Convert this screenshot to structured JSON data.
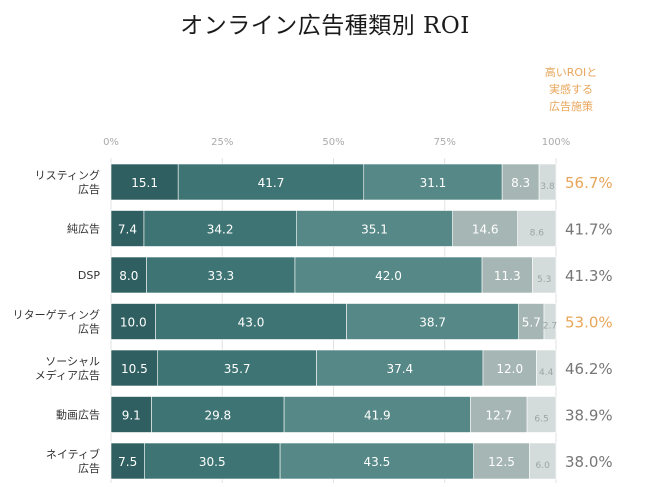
{
  "title": "オンライン広告種類別 ROI",
  "highlight_note": [
    "高いROIと",
    "実感する",
    "広告施策"
  ],
  "colors": {
    "segments": [
      "#2f5f60",
      "#3e7574",
      "#558886",
      "#a6b6b4",
      "#d3dcdb"
    ],
    "segment_text": [
      "#ffffff",
      "#ffffff",
      "#ffffff",
      "#ffffff",
      "#9aa5a4"
    ],
    "roi_normal": "#777777",
    "roi_highlight": "#e8a65a",
    "tick_label": "#aaaaaa",
    "category_label": "#333333"
  },
  "chart_data": {
    "type": "bar",
    "orientation": "horizontal",
    "stacked": true,
    "normalized": "percent",
    "xlim": [
      0,
      100
    ],
    "xticks": [
      "0%",
      "25%",
      "50%",
      "75%",
      "100%"
    ],
    "categories": [
      [
        "リスティング",
        "広告"
      ],
      [
        "純広告"
      ],
      [
        "DSP"
      ],
      [
        "リターゲティング",
        "広告"
      ],
      [
        "ソーシャル",
        "メディア広告"
      ],
      [
        "動画広告"
      ],
      [
        "ネイティブ",
        "広告"
      ]
    ],
    "segments": [
      [
        15.1,
        41.7,
        31.1,
        8.3,
        3.8
      ],
      [
        7.4,
        34.2,
        35.1,
        14.6,
        8.6
      ],
      [
        8.0,
        33.3,
        42.0,
        11.3,
        5.3
      ],
      [
        10.0,
        43.0,
        38.7,
        5.7,
        2.7
      ],
      [
        10.5,
        35.7,
        37.4,
        12.0,
        4.4
      ],
      [
        9.1,
        29.8,
        41.9,
        12.7,
        6.5
      ],
      [
        7.5,
        30.5,
        43.5,
        12.5,
        6.0
      ]
    ],
    "segment_labels": [
      [
        "15.1",
        "41.7",
        "31.1",
        "8.3",
        "3.8"
      ],
      [
        "7.4",
        "34.2",
        "35.1",
        "14.6",
        "8.6"
      ],
      [
        "8.0",
        "33.3",
        "42.0",
        "11.3",
        "5.3"
      ],
      [
        "10.0",
        "43.0",
        "38.7",
        "5.7",
        "2.7"
      ],
      [
        "10.5",
        "35.7",
        "37.4",
        "12.0",
        "4.4"
      ],
      [
        "9.1",
        "29.8",
        "41.9",
        "12.7",
        "6.5"
      ],
      [
        "7.5",
        "30.5",
        "43.5",
        "12.5",
        "6.0"
      ]
    ],
    "roi_labels": [
      "56.7%",
      "41.7%",
      "41.3%",
      "53.0%",
      "46.2%",
      "38.9%",
      "38.0%"
    ],
    "roi_highlighted": [
      true,
      false,
      false,
      true,
      false,
      false,
      false
    ],
    "grid": true
  }
}
